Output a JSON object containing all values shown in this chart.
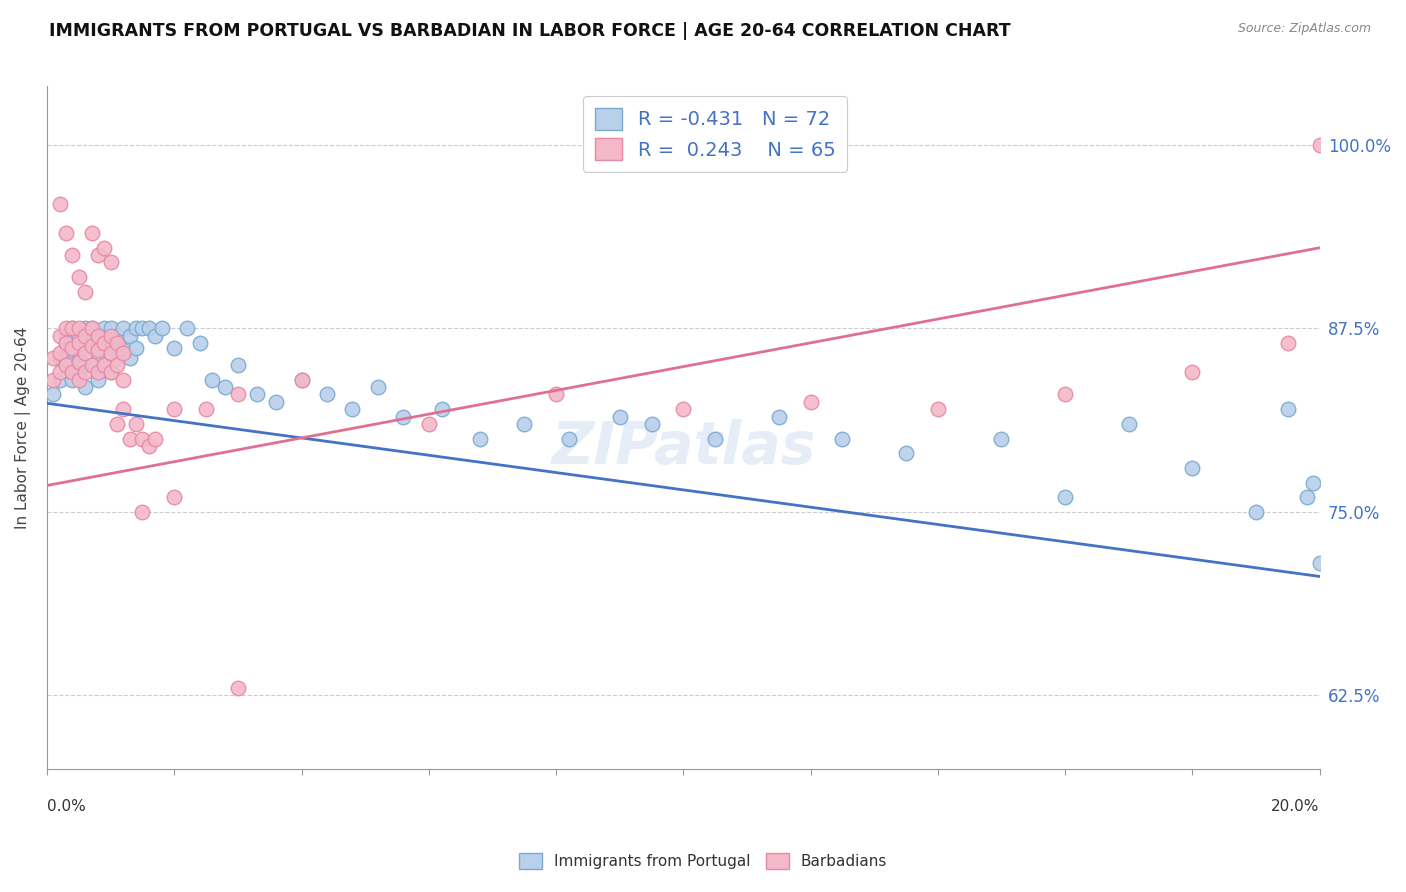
{
  "title": "IMMIGRANTS FROM PORTUGAL VS BARBADIAN IN LABOR FORCE | AGE 20-64 CORRELATION CHART",
  "source": "Source: ZipAtlas.com",
  "ylabel": "In Labor Force | Age 20-64",
  "ytick_labels": [
    "62.5%",
    "75.0%",
    "87.5%",
    "100.0%"
  ],
  "ytick_values": [
    0.625,
    0.75,
    0.875,
    1.0
  ],
  "xmin": 0.0,
  "xmax": 0.2,
  "ymin": 0.575,
  "ymax": 1.04,
  "legend_blue_label": "Immigrants from Portugal",
  "legend_pink_label": "Barbadians",
  "R_blue": -0.431,
  "N_blue": 72,
  "R_pink": 0.243,
  "N_pink": 65,
  "blue_face": "#b8d0ea",
  "blue_edge": "#7aaad0",
  "pink_face": "#f4b8c8",
  "pink_edge": "#e888a8",
  "blue_line": "#4472c4",
  "pink_line": "#e07090",
  "watermark": "ZIPatlas",
  "background_color": "#ffffff",
  "grid_color": "#cccccc",
  "blue_trend_x": [
    0.0,
    0.2
  ],
  "blue_trend_y": [
    0.824,
    0.706
  ],
  "pink_trend_x": [
    0.0,
    0.2
  ],
  "pink_trend_y": [
    0.768,
    0.93
  ],
  "blue_x": [
    0.001,
    0.002,
    0.002,
    0.003,
    0.003,
    0.003,
    0.004,
    0.004,
    0.004,
    0.005,
    0.005,
    0.005,
    0.006,
    0.006,
    0.006,
    0.006,
    0.007,
    0.007,
    0.007,
    0.008,
    0.008,
    0.008,
    0.009,
    0.009,
    0.009,
    0.01,
    0.01,
    0.01,
    0.011,
    0.011,
    0.012,
    0.012,
    0.013,
    0.013,
    0.014,
    0.014,
    0.015,
    0.016,
    0.017,
    0.018,
    0.02,
    0.022,
    0.024,
    0.026,
    0.028,
    0.03,
    0.033,
    0.036,
    0.04,
    0.044,
    0.048,
    0.052,
    0.056,
    0.062,
    0.068,
    0.075,
    0.082,
    0.09,
    0.095,
    0.105,
    0.115,
    0.125,
    0.135,
    0.15,
    0.16,
    0.17,
    0.18,
    0.19,
    0.195,
    0.198,
    0.199,
    0.2
  ],
  "blue_y": [
    0.83,
    0.855,
    0.84,
    0.865,
    0.87,
    0.85,
    0.875,
    0.86,
    0.84,
    0.87,
    0.855,
    0.845,
    0.875,
    0.862,
    0.85,
    0.835,
    0.875,
    0.865,
    0.85,
    0.87,
    0.858,
    0.84,
    0.875,
    0.865,
    0.85,
    0.875,
    0.862,
    0.845,
    0.87,
    0.855,
    0.875,
    0.86,
    0.87,
    0.855,
    0.875,
    0.862,
    0.875,
    0.875,
    0.87,
    0.875,
    0.862,
    0.875,
    0.865,
    0.84,
    0.835,
    0.85,
    0.83,
    0.825,
    0.84,
    0.83,
    0.82,
    0.835,
    0.815,
    0.82,
    0.8,
    0.81,
    0.8,
    0.815,
    0.81,
    0.8,
    0.815,
    0.8,
    0.79,
    0.8,
    0.76,
    0.81,
    0.78,
    0.75,
    0.82,
    0.76,
    0.77,
    0.715
  ],
  "pink_x": [
    0.001,
    0.001,
    0.002,
    0.002,
    0.002,
    0.003,
    0.003,
    0.003,
    0.004,
    0.004,
    0.004,
    0.005,
    0.005,
    0.005,
    0.005,
    0.006,
    0.006,
    0.006,
    0.007,
    0.007,
    0.007,
    0.008,
    0.008,
    0.008,
    0.009,
    0.009,
    0.01,
    0.01,
    0.01,
    0.011,
    0.011,
    0.012,
    0.012,
    0.013,
    0.014,
    0.015,
    0.016,
    0.017,
    0.02,
    0.025,
    0.03,
    0.04,
    0.06,
    0.08,
    0.1,
    0.12,
    0.14,
    0.16,
    0.18,
    0.195,
    0.002,
    0.003,
    0.004,
    0.005,
    0.006,
    0.007,
    0.008,
    0.009,
    0.01,
    0.011,
    0.012,
    0.015,
    0.02,
    0.03,
    0.2
  ],
  "pink_y": [
    0.855,
    0.84,
    0.87,
    0.858,
    0.845,
    0.875,
    0.865,
    0.85,
    0.875,
    0.862,
    0.845,
    0.875,
    0.865,
    0.852,
    0.84,
    0.87,
    0.858,
    0.845,
    0.875,
    0.863,
    0.85,
    0.87,
    0.86,
    0.845,
    0.865,
    0.85,
    0.87,
    0.858,
    0.845,
    0.865,
    0.85,
    0.858,
    0.84,
    0.8,
    0.81,
    0.8,
    0.795,
    0.8,
    0.82,
    0.82,
    0.83,
    0.84,
    0.81,
    0.83,
    0.82,
    0.825,
    0.82,
    0.83,
    0.845,
    0.865,
    0.96,
    0.94,
    0.925,
    0.91,
    0.9,
    0.94,
    0.925,
    0.93,
    0.92,
    0.81,
    0.82,
    0.75,
    0.76,
    0.63,
    1.0
  ]
}
